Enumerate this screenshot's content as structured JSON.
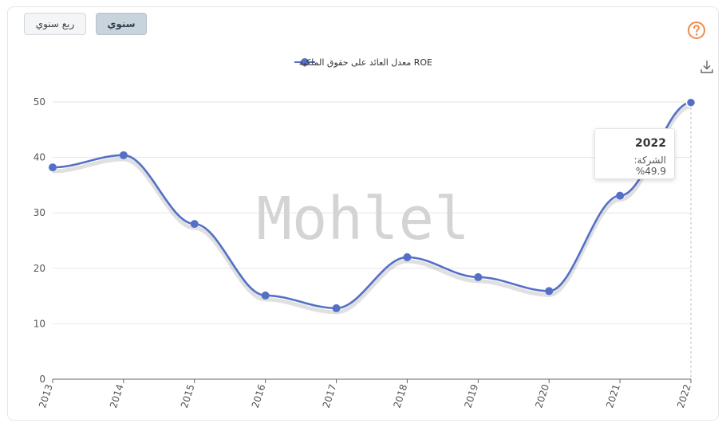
{
  "toolbar": {
    "annual_label": "سنوي",
    "quarterly_label": "ربع سنوي",
    "help_icon": "question-circle-icon",
    "download_icon": "download-icon"
  },
  "watermark": "Mohlel",
  "colors": {
    "series": "#5470c6",
    "accent": "#f08a4b",
    "grid": "#e6e6e6"
  },
  "tooltip": {
    "title": "2022",
    "label": "الشركة:",
    "value": "49.9%"
  },
  "chart_data": {
    "type": "line",
    "smooth": true,
    "legend_position": "top-center",
    "grid": true,
    "x": [
      "2013",
      "2014",
      "2015",
      "2016",
      "2017",
      "2018",
      "2019",
      "2020",
      "2021",
      "2022"
    ],
    "series": [
      {
        "name": "معدل العائد على حقوق الملكية ROE",
        "values": [
          38.2,
          40.4,
          28.0,
          15.1,
          12.8,
          22.0,
          18.4,
          15.9,
          33.1,
          49.9
        ]
      }
    ],
    "yticks": [
      0,
      10,
      20,
      30,
      40,
      50
    ],
    "ylim": [
      0,
      50
    ]
  }
}
